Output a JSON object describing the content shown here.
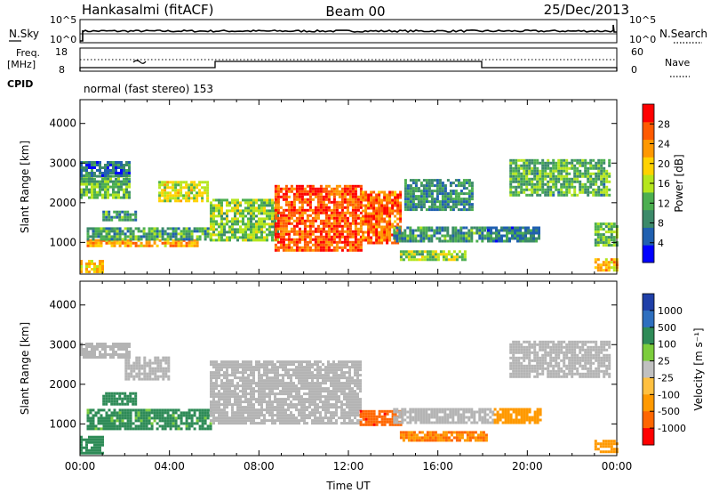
{
  "header": {
    "station": "Hankasalmi (fitACF)",
    "beam": "Beam 00",
    "date": "25/Dec/2013"
  },
  "noise_panel": {
    "left_label": "N.Sky",
    "right_label": "N.Search",
    "left_ticks": [
      "10^5",
      "10^0"
    ],
    "right_ticks": [
      "10^5",
      "10^0"
    ]
  },
  "freq_panel": {
    "left_label_line1": "Freq.",
    "left_label_line2": "[MHz]",
    "right_label": "Nave",
    "left_ticks": [
      "18",
      "8"
    ],
    "right_ticks": [
      "60",
      "0"
    ]
  },
  "cpid": {
    "label": "CPID",
    "mode": "normal (fast stereo) 153"
  },
  "colors": {
    "power_scale": [
      "#0000ff",
      "#2060b0",
      "#3c8a6a",
      "#4caf50",
      "#b5e61d",
      "#ffd200",
      "#ff9800",
      "#ff5a00",
      "#ff0000"
    ],
    "velocity_scale": [
      "#1f3fa8",
      "#2e6fbf",
      "#2e8b57",
      "#7ccd3c",
      "#c0c0c0",
      "#ffc040",
      "#ff9900",
      "#ff6600",
      "#ff0000"
    ],
    "ground_scatter": "#b4b4b4"
  },
  "chart_data": [
    {
      "type": "heatmap",
      "name": "power",
      "ylabel": "Slant Range [km]",
      "yticks": [
        "1000",
        "2000",
        "3000",
        "4000"
      ],
      "ylim": [
        200,
        4600
      ],
      "xlim": [
        0,
        24
      ],
      "colorbar": {
        "label": "Power [dB]",
        "ticks": [
          "4",
          "8",
          "12",
          "16",
          "20",
          "24",
          "28"
        ],
        "range": [
          0,
          32
        ]
      },
      "regions": [
        {
          "t0": 0.0,
          "t1": 1.0,
          "r0": 280,
          "r1": 560,
          "value": 20
        },
        {
          "t0": 0.3,
          "t1": 5.2,
          "r0": 880,
          "r1": 1080,
          "value": 22
        },
        {
          "t0": 0.3,
          "t1": 5.8,
          "r0": 1080,
          "r1": 1380,
          "value": 11
        },
        {
          "t0": 1.0,
          "t1": 2.5,
          "r0": 1580,
          "r1": 1800,
          "value": 10
        },
        {
          "t0": 0.0,
          "t1": 2.2,
          "r0": 2100,
          "r1": 2700,
          "value": 12
        },
        {
          "t0": 0.0,
          "t1": 2.2,
          "r0": 2700,
          "r1": 3050,
          "value": 7
        },
        {
          "t0": 3.5,
          "t1": 5.7,
          "r0": 2050,
          "r1": 2550,
          "value": 17
        },
        {
          "t0": 5.8,
          "t1": 8.8,
          "r0": 1050,
          "r1": 2100,
          "value": 14
        },
        {
          "t0": 8.7,
          "t1": 12.6,
          "r0": 800,
          "r1": 2450,
          "value": 27
        },
        {
          "t0": 12.6,
          "t1": 14.3,
          "r0": 1000,
          "r1": 2300,
          "value": 26
        },
        {
          "t0": 14.0,
          "t1": 18.2,
          "r0": 1050,
          "r1": 1400,
          "value": 10
        },
        {
          "t0": 14.3,
          "t1": 17.2,
          "r0": 560,
          "r1": 800,
          "value": 15
        },
        {
          "t0": 14.5,
          "t1": 17.5,
          "r0": 1800,
          "r1": 2600,
          "value": 9
        },
        {
          "t0": 18.2,
          "t1": 20.5,
          "r0": 1050,
          "r1": 1400,
          "value": 8
        },
        {
          "t0": 19.2,
          "t1": 23.7,
          "r0": 2200,
          "r1": 3100,
          "value": 12
        },
        {
          "t0": 23.0,
          "t1": 24.0,
          "r0": 950,
          "r1": 1500,
          "value": 13
        },
        {
          "t0": 23.0,
          "t1": 24.0,
          "r0": 300,
          "r1": 600,
          "value": 21
        }
      ]
    },
    {
      "type": "heatmap",
      "name": "velocity",
      "ylabel": "Slant Range [km]",
      "xlabel": "Time UT",
      "yticks": [
        "1000",
        "2000",
        "3000",
        "4000"
      ],
      "ylim": [
        200,
        4600
      ],
      "xlim": [
        0,
        24
      ],
      "xticks": [
        "00:00",
        "04:00",
        "08:00",
        "12:00",
        "16:00",
        "20:00",
        "00:00"
      ],
      "colorbar": {
        "label": "Velocity [m s⁻¹]",
        "ticks": [
          "1000",
          "500",
          "100",
          "25",
          "-25",
          "-100",
          "-500",
          "-1000"
        ]
      },
      "regions": [
        {
          "t0": 0.0,
          "t1": 1.0,
          "r0": 280,
          "r1": 700,
          "value": 120
        },
        {
          "t0": 0.3,
          "t1": 5.8,
          "r0": 880,
          "r1": 1380,
          "value": 80
        },
        {
          "t0": 1.0,
          "t1": 2.5,
          "r0": 1500,
          "r1": 1800,
          "value": 200
        },
        {
          "t0": 0.0,
          "t1": 2.2,
          "r0": 2700,
          "r1": 3050,
          "value": 0
        },
        {
          "t0": 2.0,
          "t1": 4.0,
          "r0": 2100,
          "r1": 2700,
          "value": 0
        },
        {
          "t0": 5.8,
          "t1": 12.5,
          "r0": 1050,
          "r1": 2600,
          "value": 0
        },
        {
          "t0": 12.5,
          "t1": 14.3,
          "r0": 950,
          "r1": 1350,
          "value": -600
        },
        {
          "t0": 14.3,
          "t1": 18.2,
          "r0": 560,
          "r1": 820,
          "value": -300
        },
        {
          "t0": 14.0,
          "t1": 18.5,
          "r0": 1050,
          "r1": 1400,
          "value": 0
        },
        {
          "t0": 18.5,
          "t1": 20.6,
          "r0": 1000,
          "r1": 1400,
          "value": -200
        },
        {
          "t0": 19.2,
          "t1": 23.7,
          "r0": 2200,
          "r1": 3100,
          "value": 0
        },
        {
          "t0": 23.0,
          "t1": 24.0,
          "r0": 300,
          "r1": 600,
          "value": -150
        }
      ]
    }
  ]
}
